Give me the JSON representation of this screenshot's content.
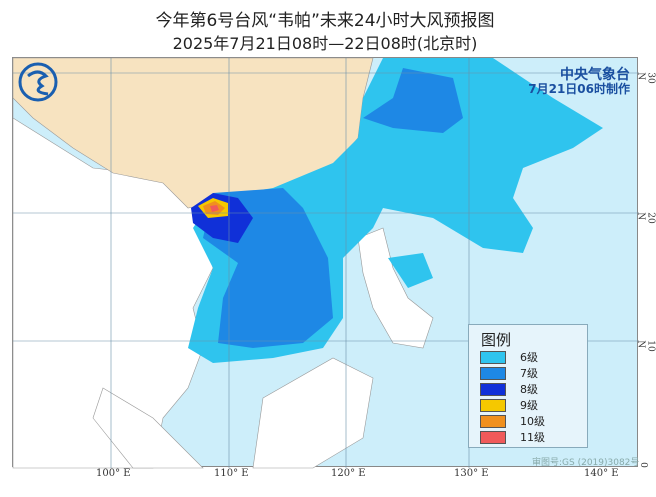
{
  "title": "今年第6号台风“韦帕”未来24小时大风预报图",
  "subtitle": "2025年7月21日08时—22日08时(北京时)",
  "agency": {
    "name": "中央气象台",
    "issued": "7月21日06时制作"
  },
  "logo": "cma-logo",
  "axes": {
    "longitude_labels": [
      "100° E",
      "110° E",
      "120° E",
      "130° E",
      "140° E"
    ],
    "latitude_labels": [
      "30 N",
      "20 N",
      "10 N",
      "0"
    ]
  },
  "legend": {
    "title": "图例",
    "items": [
      {
        "label": "6级",
        "color": "#2fc4ee"
      },
      {
        "label": "7级",
        "color": "#1e88e5"
      },
      {
        "label": "8级",
        "color": "#1030d8"
      },
      {
        "label": "9级",
        "color": "#f5c800"
      },
      {
        "label": "10级",
        "color": "#f0901e"
      },
      {
        "label": "11级",
        "color": "#f05a5a"
      }
    ]
  },
  "approval_number": "审图号:GS (2019)3082号",
  "colors": {
    "sea": "#cdeefa",
    "china_land": "#f7e3c0",
    "other_land": "#ffffff"
  }
}
